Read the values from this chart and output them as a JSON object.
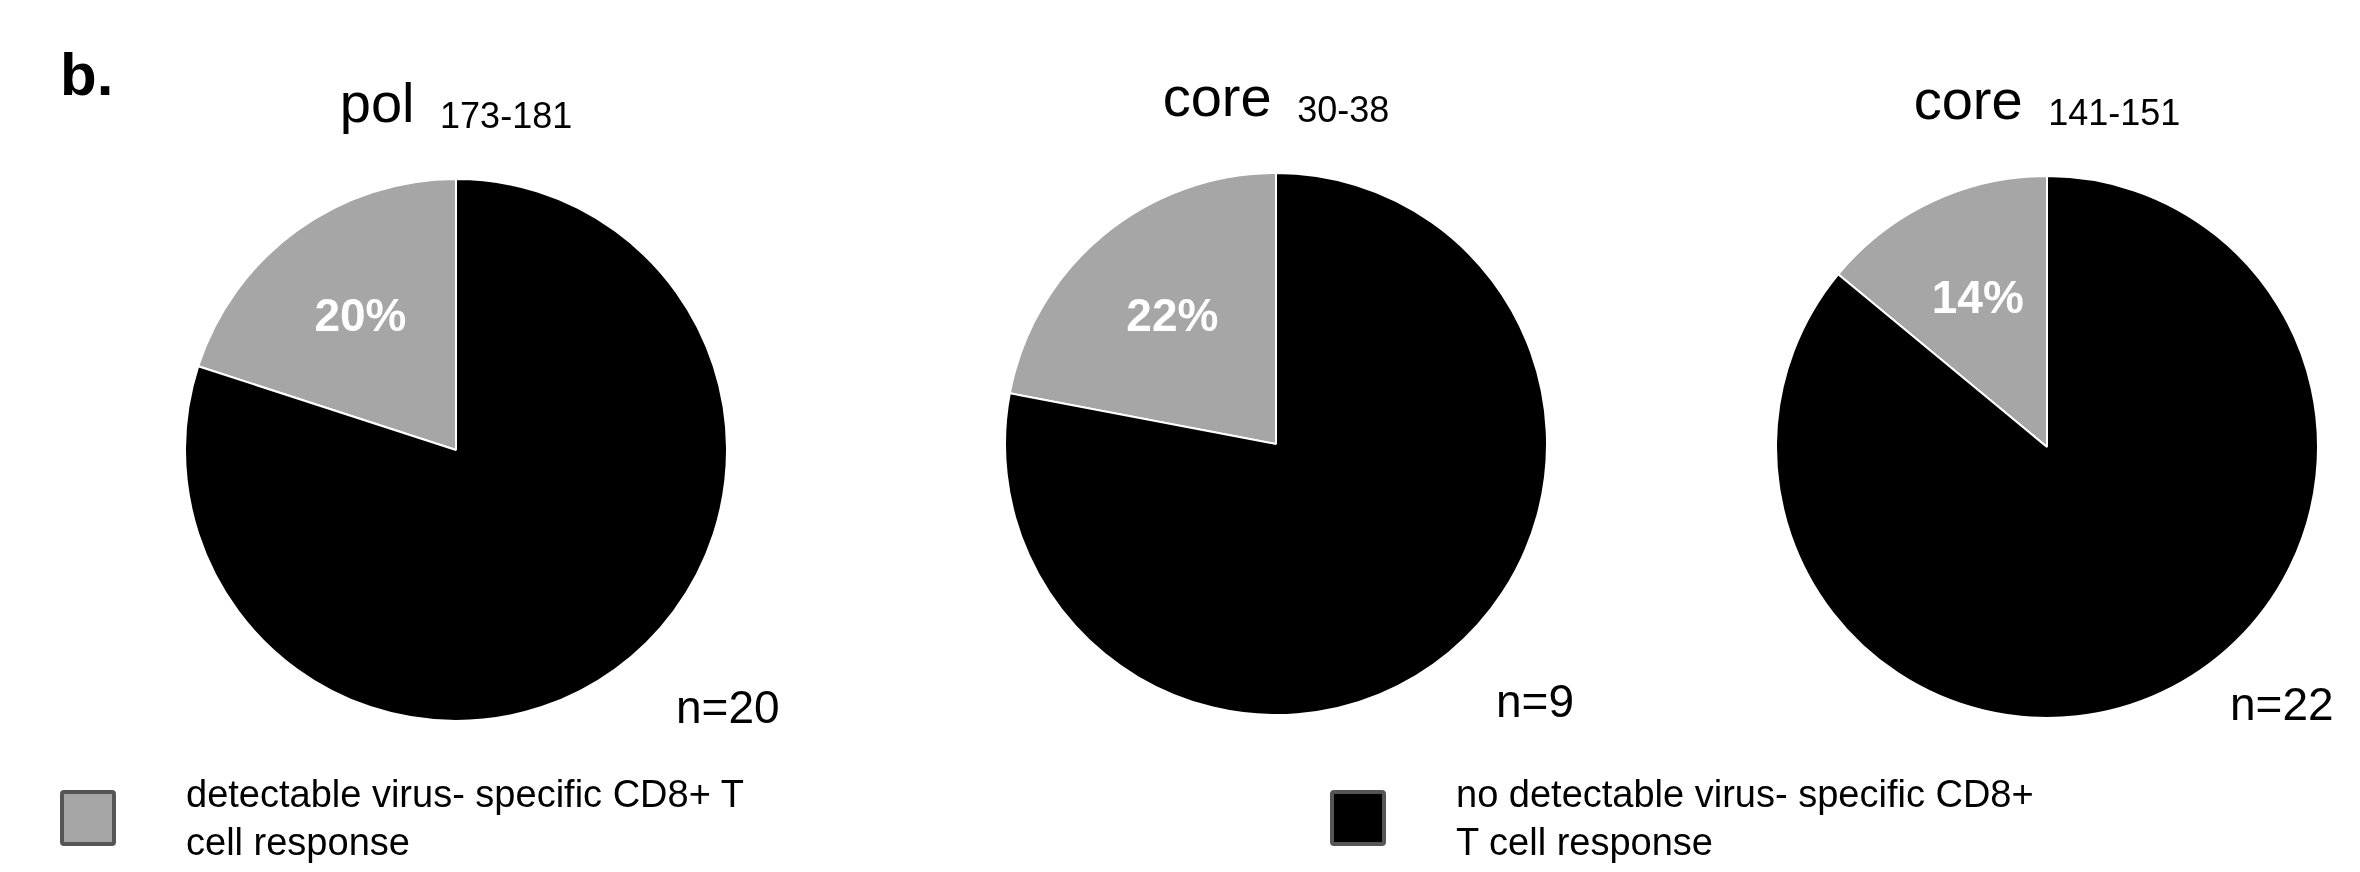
{
  "chart_data": [
    {
      "type": "pie",
      "title": "pol $_{173-181}$",
      "categories": [
        "detectable virus- specific CD8+ T cell response",
        "no detectable virus- specific CD8+ T cell response"
      ],
      "values": [
        20,
        80
      ],
      "colors": [
        "#a6a6a6",
        "#000000"
      ],
      "value_labels": [
        "20%",
        null
      ],
      "legend": "bottom",
      "annotations": [
        "b.",
        "n=20"
      ]
    },
    {
      "type": "pie",
      "title": "core $_{30-38}$",
      "categories": [
        null,
        null
      ],
      "values": [
        22,
        78
      ],
      "colors": [
        "#a6a6a6",
        "#000000"
      ],
      "value_labels": [
        "22%",
        null
      ],
      "annotations": [
        "n=9"
      ]
    },
    {
      "type": "pie",
      "title": "core $_{141-151}$",
      "categories": [
        null,
        null
      ],
      "values": [
        14,
        86
      ],
      "colors": [
        "#a6a6a6",
        "#000000"
      ],
      "value_labels": [
        "14%",
        null
      ],
      "annotations": [
        "n=22"
      ]
    }
  ]
}
